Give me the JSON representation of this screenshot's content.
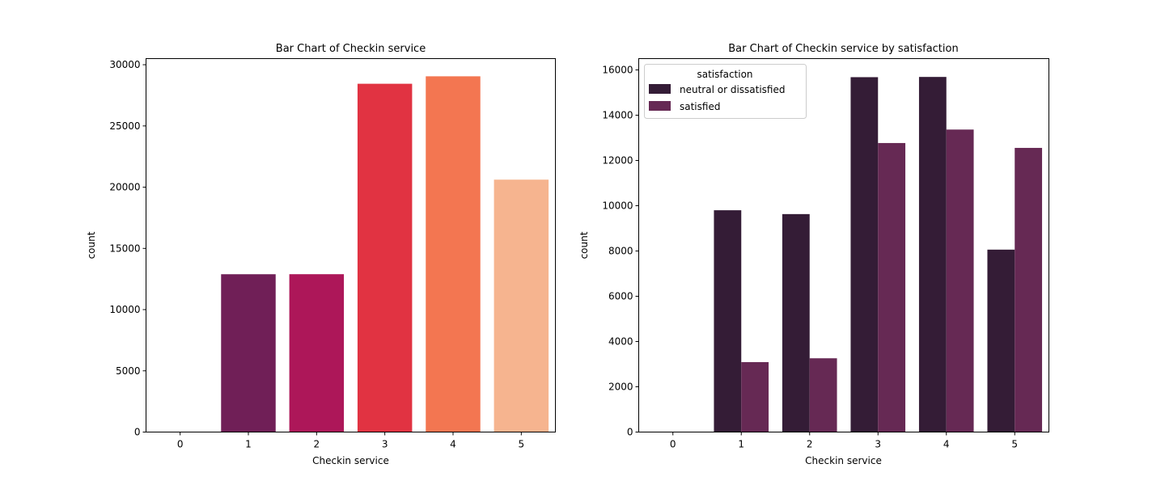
{
  "chart_data": [
    {
      "type": "bar",
      "title": "Bar Chart of Checkin service",
      "xlabel": "Checkin service",
      "ylabel": "count",
      "categories": [
        "0",
        "1",
        "2",
        "3",
        "4",
        "5"
      ],
      "values": [
        1,
        12890,
        12893,
        28446,
        29055,
        20615
      ],
      "bar_colors": [
        "#35193e",
        "#701f57",
        "#ad1759",
        "#e13342",
        "#f37651",
        "#f6b48f"
      ],
      "ylim": [
        0,
        30500
      ],
      "yticks": [
        0,
        5000,
        10000,
        15000,
        20000,
        25000,
        30000
      ],
      "grid": false
    },
    {
      "type": "bar",
      "title": "Bar Chart of Checkin service by satisfaction",
      "xlabel": "Checkin service",
      "ylabel": "count",
      "categories": [
        "0",
        "1",
        "2",
        "3",
        "4",
        "5"
      ],
      "series": [
        {
          "name": "neutral or dissatisfied",
          "color": "#341c36",
          "values": [
            1,
            9800,
            9630,
            15680,
            15690,
            8060
          ]
        },
        {
          "name": "satisfied",
          "color": "#662954",
          "values": [
            0,
            3090,
            3260,
            12770,
            13365,
            12555
          ]
        }
      ],
      "ylim": [
        0,
        16500
      ],
      "yticks": [
        0,
        2000,
        4000,
        6000,
        8000,
        10000,
        12000,
        14000,
        16000
      ],
      "legend": {
        "title": "satisfaction",
        "placement": "top-left"
      },
      "grid": false
    }
  ]
}
